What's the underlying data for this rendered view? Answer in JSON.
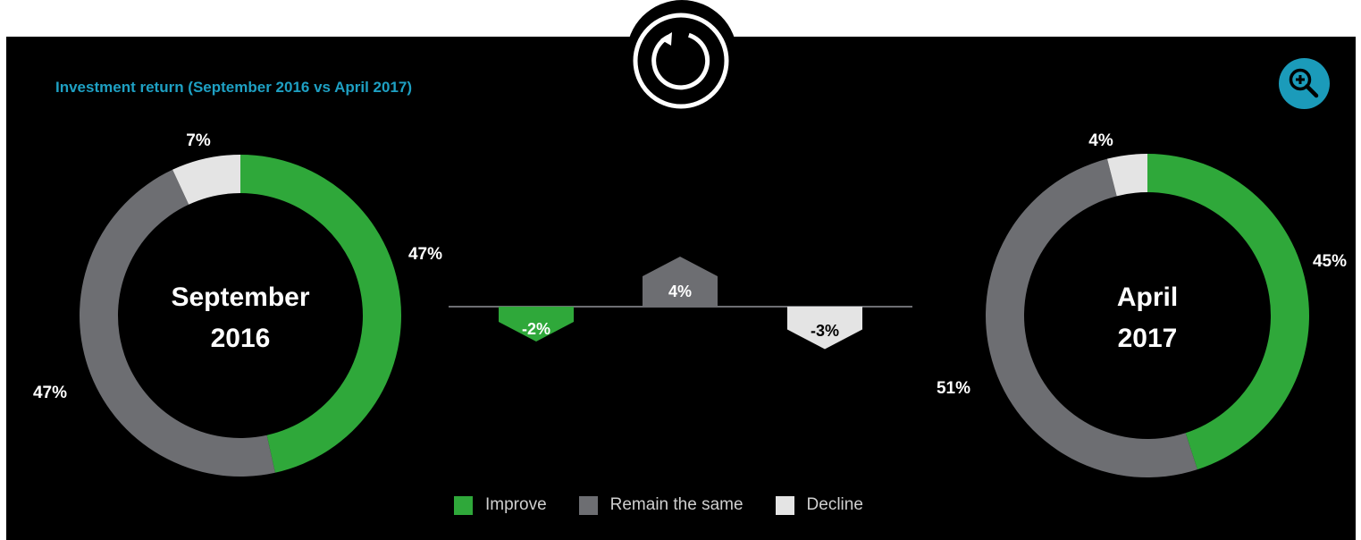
{
  "header": {
    "title": "Investment return (September 2016 vs April 2017)",
    "refresh_icon": "refresh-icon",
    "zoom_icon": "zoom-in-icon"
  },
  "colors": {
    "improve": "#2fa83a",
    "remain": "#6d6e72",
    "decline": "#e4e4e4",
    "accent": "#1b9bba"
  },
  "legend": [
    {
      "label": "Improve",
      "color": "#2fa83a"
    },
    {
      "label": "Remain the same",
      "color": "#6d6e72"
    },
    {
      "label": "Decline",
      "color": "#e4e4e4"
    }
  ],
  "chart_data": [
    {
      "type": "pie",
      "title": "September 2016",
      "center_label": [
        "September",
        "2016"
      ],
      "series": [
        {
          "name": "Improve",
          "value": 47,
          "label": "47%"
        },
        {
          "name": "Remain the same",
          "value": 47,
          "label": "47%"
        },
        {
          "name": "Decline",
          "value": 7,
          "label": "7%"
        }
      ]
    },
    {
      "type": "bar",
      "title": "",
      "categories": [
        "Improve",
        "Remain the same",
        "Decline"
      ],
      "values": [
        -2,
        4,
        -3
      ],
      "labels": [
        "-2%",
        "4%",
        "-3%"
      ]
    },
    {
      "type": "pie",
      "title": "April 2017",
      "center_label": [
        "April",
        "2017"
      ],
      "series": [
        {
          "name": "Improve",
          "value": 45,
          "label": "45%"
        },
        {
          "name": "Remain the same",
          "value": 51,
          "label": "51%"
        },
        {
          "name": "Decline",
          "value": 4,
          "label": "4%"
        }
      ]
    }
  ]
}
